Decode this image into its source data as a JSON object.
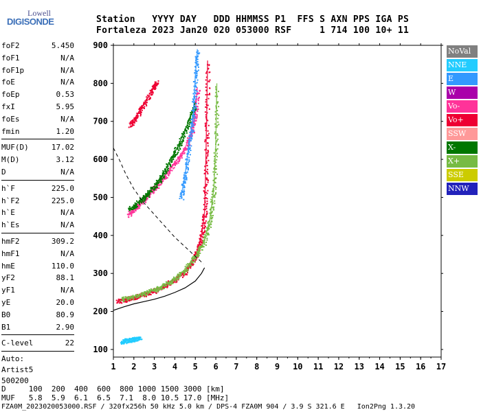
{
  "logo": {
    "line1": "Lowell",
    "line2": "DIGISONDE"
  },
  "header": {
    "row1": "Station   YYYY DAY   DDD HHMMSS P1  FFS S AXN PPS IGA PS",
    "row2": "Fortaleza 2023 Jan20 020 053000 RSF     1 714 100 10+ 11"
  },
  "params": {
    "group1": [
      {
        "k": "foF2",
        "v": "5.450"
      },
      {
        "k": "foF1",
        "v": "N/A"
      },
      {
        "k": "foF1p",
        "v": "N/A"
      },
      {
        "k": "foE",
        "v": "N/A"
      },
      {
        "k": "foEp",
        "v": "0.53"
      },
      {
        "k": "fxI",
        "v": "5.95"
      },
      {
        "k": "foEs",
        "v": "N/A"
      },
      {
        "k": "fmin",
        "v": "1.20"
      }
    ],
    "group2": [
      {
        "k": "MUF(D)",
        "v": "17.02"
      },
      {
        "k": "M(D)",
        "v": "3.12"
      },
      {
        "k": "D",
        "v": "N/A"
      }
    ],
    "group3": [
      {
        "k": "h`F",
        "v": "225.0"
      },
      {
        "k": "h`F2",
        "v": "225.0"
      },
      {
        "k": "h`E",
        "v": "N/A"
      },
      {
        "k": "h`Es",
        "v": "N/A"
      }
    ],
    "group4": [
      {
        "k": "hmF2",
        "v": "309.2"
      },
      {
        "k": "hmF1",
        "v": "N/A"
      },
      {
        "k": "hmE",
        "v": "110.0"
      },
      {
        "k": "yF2",
        "v": "88.1"
      },
      {
        "k": "yF1",
        "v": "N/A"
      },
      {
        "k": "yE",
        "v": "20.0"
      },
      {
        "k": "B0",
        "v": "80.9"
      },
      {
        "k": "B1",
        "v": "2.90"
      }
    ],
    "group5": [
      {
        "k": "C-level",
        "v": "22"
      }
    ],
    "auto": [
      "Auto:",
      "Artist5",
      "500200"
    ]
  },
  "legend": [
    {
      "label": "NoVal",
      "color": "#808080"
    },
    {
      "label": "NNE",
      "color": "#22ccff"
    },
    {
      "label": "E",
      "color": "#3399ff"
    },
    {
      "label": "W",
      "color": "#aa00aa"
    },
    {
      "label": "Vo-",
      "color": "#ff3399"
    },
    {
      "label": "Vo+",
      "color": "#ee0033"
    },
    {
      "label": "SSW",
      "color": "#ff9999"
    },
    {
      "label": "X-",
      "color": "#007700"
    },
    {
      "label": "X+",
      "color": "#77bb44"
    },
    {
      "label": "SSE",
      "color": "#cccc00"
    },
    {
      "label": "NNW",
      "color": "#2222bb"
    }
  ],
  "footer": {
    "d_row": "D     100  200  400  600  800 1000 1500 3000 [km]",
    "muf_row": "MUF   5.8  5.9  6.1  6.5  7.1  8.0 10.5 17.0 [MHz]",
    "file_row": "FZA0M_2023020053000.RSF / 320fx256h 50 kHz 5.0 km / DPS-4 FZA0M 904 / 3.9 S 321.6 E   Ion2Png 1.3.20"
  },
  "chart_data": {
    "type": "scatter",
    "x_ticks": [
      1,
      2,
      3,
      4,
      5,
      6,
      7,
      8,
      9,
      10,
      11,
      12,
      13,
      14,
      15,
      16,
      17
    ],
    "y_ticks": [
      100,
      200,
      300,
      400,
      500,
      600,
      700,
      800,
      900
    ],
    "xlim": [
      1,
      17
    ],
    "ylim": [
      80,
      900
    ],
    "grid": false,
    "profile_curve": {
      "x": [
        1.0,
        1.5,
        2.0,
        2.5,
        3.0,
        3.5,
        4.0,
        4.5,
        5.0,
        5.3,
        5.45
      ],
      "y": [
        203,
        212,
        220,
        226,
        232,
        240,
        250,
        262,
        280,
        300,
        315
      ]
    },
    "dashed_curve": {
      "x": [
        1.0,
        1.3,
        1.6,
        2.0,
        2.5,
        3.0,
        3.5,
        4.0,
        4.5,
        5.0,
        5.4
      ],
      "y": [
        630,
        598,
        562,
        522,
        485,
        455,
        425,
        395,
        370,
        345,
        325
      ]
    },
    "traces": [
      {
        "name": "o-trace",
        "color": "#ee0033",
        "x": [
          1.2,
          1.6,
          2.0,
          2.5,
          3.0,
          3.5,
          4.0,
          4.5,
          4.9,
          5.1,
          5.3,
          5.45,
          5.5,
          5.55,
          5.6
        ],
        "y": [
          228,
          232,
          238,
          246,
          255,
          268,
          285,
          305,
          335,
          360,
          400,
          460,
          560,
          700,
          860
        ]
      },
      {
        "name": "x-trace",
        "color": "#77bb44",
        "x": [
          1.4,
          2.0,
          2.6,
          3.2,
          3.8,
          4.4,
          5.0,
          5.4,
          5.7,
          5.9,
          6.0,
          6.05
        ],
        "y": [
          232,
          240,
          250,
          262,
          280,
          305,
          345,
          380,
          440,
          520,
          640,
          800
        ]
      },
      {
        "name": "o-multi",
        "color": "#ff3399",
        "x": [
          1.7,
          2.1,
          2.6,
          3.0,
          3.5,
          4.0,
          4.5,
          4.8,
          5.0,
          5.1
        ],
        "y": [
          455,
          475,
          500,
          525,
          555,
          590,
          630,
          670,
          720,
          790
        ]
      },
      {
        "name": "x-multi",
        "color": "#007700",
        "x": [
          1.8,
          2.2,
          2.6,
          3.0,
          3.4,
          3.8,
          4.2,
          4.6,
          5.0
        ],
        "y": [
          470,
          487,
          506,
          530,
          560,
          598,
          640,
          690,
          750
        ]
      },
      {
        "name": "o-third",
        "color": "#ee0033",
        "x": [
          1.8,
          2.1,
          2.5,
          2.9,
          3.1
        ],
        "y": [
          690,
          712,
          745,
          785,
          805
        ]
      },
      {
        "name": "oblique",
        "color": "#3399ff",
        "x": [
          4.3,
          4.5,
          4.7,
          4.9,
          5.0,
          5.1
        ],
        "y": [
          500,
          560,
          640,
          720,
          820,
          890
        ]
      },
      {
        "name": "es-patch",
        "color": "#22ccff",
        "x": [
          1.4,
          1.6,
          1.8,
          2.0,
          2.3
        ],
        "y": [
          120,
          124,
          126,
          128,
          130
        ]
      }
    ]
  }
}
